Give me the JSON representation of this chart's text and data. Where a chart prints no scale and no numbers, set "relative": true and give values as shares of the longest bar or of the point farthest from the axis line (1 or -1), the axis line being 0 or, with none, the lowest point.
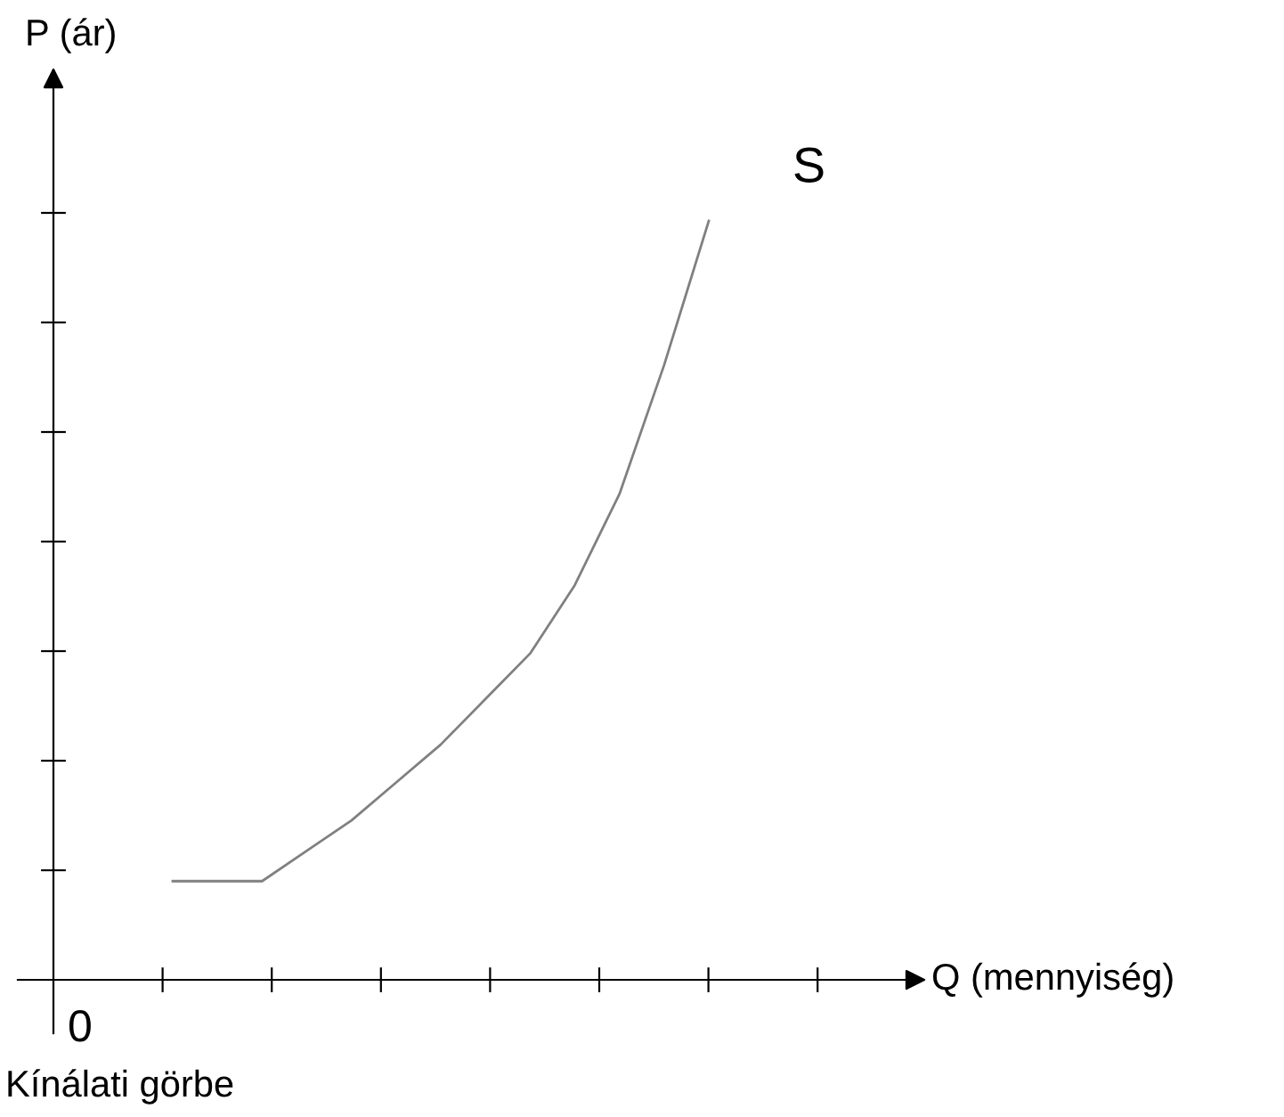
{
  "chart_data": {
    "type": "line",
    "relative": true,
    "ylabel": "P (ár)",
    "categories": [
      null,
      null,
      null,
      null,
      null,
      null,
      null,
      null,
      null,
      null,
      null,
      null,
      null
    ],
    "series": [
      {
        "name": "S",
        "color": "#808080",
        "values": [
          0.13,
          0.13,
          0.13,
          0.17,
          0.21,
          0.26,
          0.31,
          0.37,
          0.43,
          0.52,
          0.64,
          0.81,
          1
        ]
      }
    ],
    "annotations": [
      "0",
      "Kínálati görbe",
      "Q (mennyiség)"
    ],
    "legend": false
  }
}
